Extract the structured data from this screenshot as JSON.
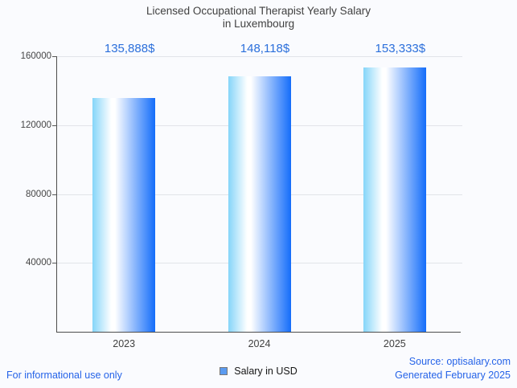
{
  "title": {
    "line1": "Licensed Occupational Therapist Yearly Salary",
    "line2": "in Luxembourg"
  },
  "chart_data": {
    "type": "bar",
    "title": "Licensed Occupational Therapist Yearly Salary in Luxembourg",
    "categories": [
      "2023",
      "2024",
      "2025"
    ],
    "values": [
      135888,
      148118,
      153333
    ],
    "value_labels": [
      "135,888$",
      "148,118$",
      "153,333$"
    ],
    "xlabel": "",
    "ylabel": "",
    "ylim": [
      0,
      160000
    ],
    "yticks": [
      40000,
      80000,
      120000,
      160000
    ],
    "grid": true,
    "legend_position": "bottom",
    "series_name": "Salary in USD"
  },
  "legend": {
    "label": "Salary in USD"
  },
  "footer": {
    "left": "For informational use only",
    "source": "Source: optisalary.com",
    "generated": "Generated February 2025"
  },
  "colors": {
    "background": "#fafbfe",
    "title_text": "#404040",
    "value_label": "#2b6fdb",
    "footer_text": "#2563e8",
    "bar_gradient_left": "#85d5f9",
    "bar_gradient_mid": "#ffffff",
    "bar_gradient_right": "#146dfa",
    "axis": "#4d4d4d",
    "gridline": "#e2e4e9",
    "legend_swatch_fill": "#5b9bf0",
    "legend_swatch_border": "#777777"
  }
}
